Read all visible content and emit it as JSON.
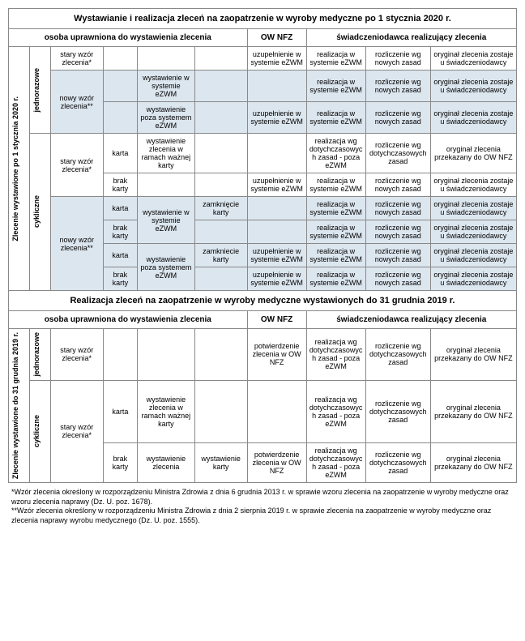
{
  "titles": {
    "section1": "Wystawianie i realizacja zleceń na zaopatrzenie w wyroby medyczne po 1 stycznia 2020 r.",
    "section2": "Realizacja zleceń na zaopatrzenie w wyroby medyczne wystawionych do 31 grudnia 2019 r."
  },
  "headers": {
    "osoba": "osoba uprawniona do wystawienia zlecenia",
    "ow": "OW NFZ",
    "swiadcz": "świadczeniodawca realizujący zlecenia"
  },
  "side": {
    "po2020": "Zlecenie wystawione po 1 stycznia 2020 r.",
    "do2019": "Zlecenie wystawione do 31 grudnia 2019 r.",
    "jednorazowe": "jednorazowe",
    "cykliczne": "cykliczne"
  },
  "labels": {
    "stary": "stary wzór zlecenia*",
    "nowy": "nowy wzór zlecenia**",
    "karta": "karta",
    "brakKarty": "brak karty",
    "wystEzwm": "wystawienie w systemie eZWM",
    "wystPozaEzwm": "wystawienie poza systemem eZWM",
    "wystRamach": "wystawienie zlecenia w ramach ważnej karty",
    "wystZlecenia": "wystawienie zlecenia",
    "zamkKarty": "zamknięcie karty",
    "zamkKarty2": "zamkniecie karty",
    "wystEkarty": "wystawienie karty",
    "uzupEzwm": "uzupełnienie w systemie eZWM",
    "potwOw": "potwierdzenie zlecenia w OW NFZ",
    "realizEzwm": "realizacja w systemie eZWM",
    "realizDotych": "realizacja wg dotychczasowych zasad - poza eZWM",
    "rozlNowych": "rozliczenie wg nowych zasad",
    "rozlDotych": "rozliczenie wg dotychczasowych zasad",
    "rozlDotych2": "rozliczenie wg dotychczasowych  zasad",
    "orygZostaje": "oryginał zlecenia zostaje u świadczeniodawcy",
    "orygPrzek": "oryginał zlecenia przekazany do OW NFZ"
  },
  "footnote": {
    "t1": "*Wzór zlecenia określony w rozporządzeniu Ministra Zdrowia z dnia 6 grudnia 2013 r. w sprawie wzoru zlecenia na zaopatrzenie w wyroby medyczne oraz wzoru zlecenia naprawy (Dz. U. poz. 1678).",
    "t2": "**Wzór zlecenia określony w rozporządzeniu Ministra Zdrowia z dnia 2 sierpnia 2019 r. w sprawie zlecenia na zaopatrzenie w wyroby medyczne oraz zlecenia naprawy wyrobu medycznego (Dz. U. poz. 1555)."
  },
  "colors": {
    "shaded": "#dce6ef",
    "border": "#888888",
    "text": "#000000",
    "bg": "#ffffff"
  }
}
